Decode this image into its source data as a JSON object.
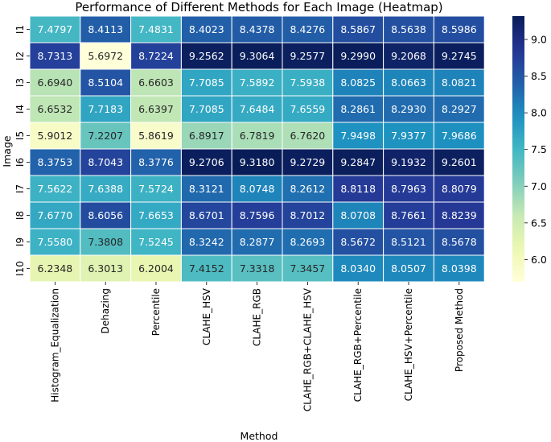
{
  "chart_data": {
    "type": "heatmap",
    "title": "Performance of Different Methods for Each Image (Heatmap)",
    "xlabel": "Method",
    "ylabel": "Image",
    "columns": [
      "Histogram_Equalization",
      "Dehazing",
      "Percentile",
      "CLAHE_HSV",
      "CLAHE_RGB",
      "CLAHE_RGB+CLAHE_HSV",
      "CLAHE_RGB+Percentile",
      "CLAHE_HSV+Percentile",
      "Proposed Method"
    ],
    "rows": [
      "I1",
      "I2",
      "I3",
      "I4",
      "I5",
      "I6",
      "I7",
      "I8",
      "I9",
      "I10"
    ],
    "values": [
      [
        7.4797,
        8.4113,
        7.4831,
        8.4023,
        8.4378,
        8.4276,
        8.5867,
        8.5638,
        8.5986
      ],
      [
        8.7313,
        5.6972,
        8.7224,
        9.2562,
        9.3064,
        9.2577,
        9.299,
        9.2068,
        9.2745
      ],
      [
        6.694,
        8.5104,
        6.6603,
        7.7085,
        7.5892,
        7.5938,
        8.0825,
        8.0663,
        8.0821
      ],
      [
        6.6532,
        7.7183,
        6.6397,
        7.7085,
        7.6484,
        7.6559,
        8.2861,
        8.293,
        8.2927
      ],
      [
        5.9012,
        7.2207,
        5.8619,
        6.8917,
        6.7819,
        6.762,
        7.9498,
        7.9377,
        7.9686
      ],
      [
        8.3753,
        8.7043,
        8.3776,
        9.2706,
        9.318,
        9.2729,
        9.2847,
        9.1932,
        9.2601
      ],
      [
        7.5622,
        7.6388,
        7.5724,
        8.3121,
        8.0748,
        8.2612,
        8.8118,
        8.7963,
        8.8079
      ],
      [
        7.677,
        8.6056,
        7.6653,
        8.6701,
        8.7596,
        8.7012,
        8.0708,
        8.7661,
        8.8239
      ],
      [
        7.558,
        7.3808,
        7.5245,
        8.3242,
        8.2877,
        8.2693,
        8.5672,
        8.5121,
        8.5678
      ],
      [
        6.2348,
        6.3013,
        6.2004,
        7.4152,
        7.3318,
        7.3457,
        8.034,
        8.0507,
        8.0398
      ]
    ],
    "color_range": [
      5.6972,
      9.318
    ],
    "colormap": "YlGnBu",
    "colorbar_ticks": [
      6.0,
      6.5,
      7.0,
      7.5,
      8.0,
      8.5,
      9.0
    ],
    "colorbar_tick_labels": [
      "6.0",
      "6.5",
      "7.0",
      "7.5",
      "8.0",
      "8.5",
      "9.0"
    ],
    "cell_label_format": "4dp"
  }
}
